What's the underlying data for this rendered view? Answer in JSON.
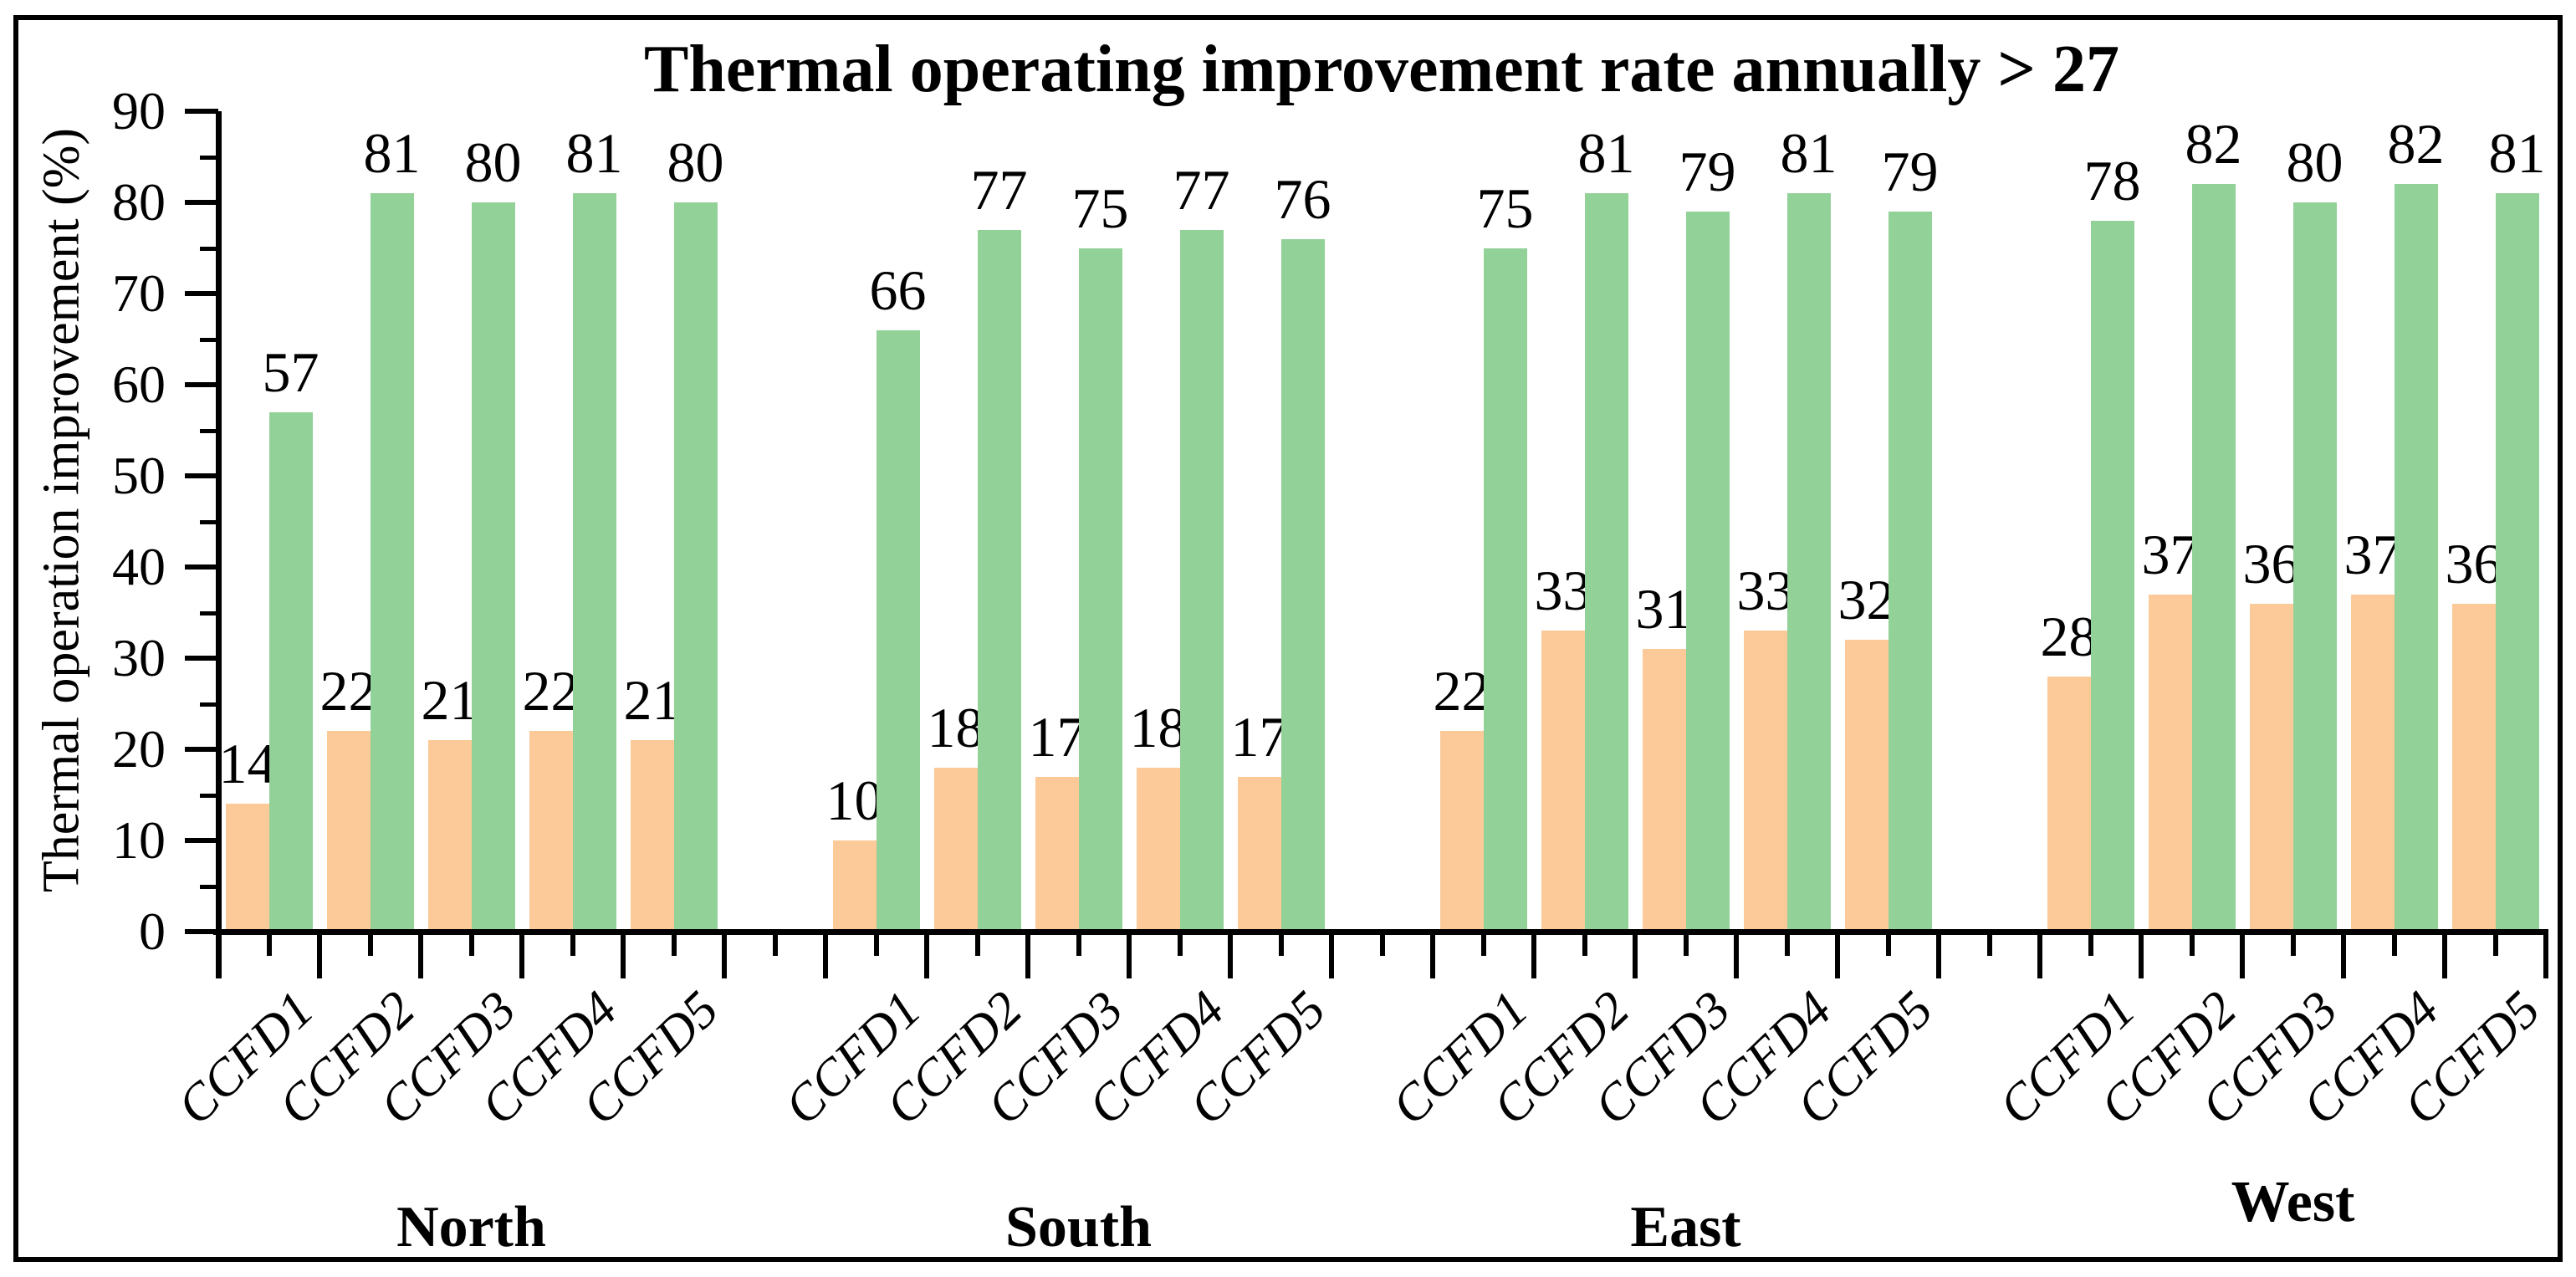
{
  "title": "Thermal operating improvement rate annually > 27",
  "y_axis": {
    "label": "Thermal operation improvement (%)",
    "tick_labels": [
      "0",
      "10",
      "20",
      "30",
      "40",
      "50",
      "60",
      "70",
      "80",
      "90"
    ],
    "range": [
      0,
      90
    ],
    "minor_tick_step": 5
  },
  "x_axis": {
    "group_labels": [
      "North",
      "South",
      "East",
      "West"
    ],
    "category_labels": [
      "CCFD1",
      "CCFD2",
      "CCFD3",
      "CCFD4",
      "CCFD5"
    ]
  },
  "colors": {
    "orange_bar": "#FBCA98",
    "green_bar": "#92D197",
    "axis": "#000000",
    "background": "#FFFFFF"
  },
  "chart_data": {
    "type": "bar",
    "title": "Thermal operating improvement rate annually > 27",
    "xlabel": "",
    "ylabel": "Thermal operation improvement (%)",
    "ylim": [
      0,
      90
    ],
    "yticks": [
      0,
      10,
      20,
      30,
      40,
      50,
      60,
      70,
      80,
      90
    ],
    "grid": false,
    "legend": "none",
    "groups": [
      "North",
      "South",
      "East",
      "West"
    ],
    "categories": [
      "CCFD1",
      "CCFD2",
      "CCFD3",
      "CCFD4",
      "CCFD5"
    ],
    "series": [
      {
        "name": "orange",
        "color": "#FBCA98",
        "values": {
          "North": [
            14,
            22,
            21,
            22,
            21
          ],
          "South": [
            10,
            18,
            17,
            18,
            17
          ],
          "East": [
            22,
            33,
            31,
            33,
            32
          ],
          "West": [
            28,
            37,
            36,
            37,
            36
          ]
        }
      },
      {
        "name": "green",
        "color": "#92D197",
        "values": {
          "North": [
            57,
            81,
            80,
            81,
            80
          ],
          "South": [
            66,
            77,
            75,
            77,
            76
          ],
          "East": [
            75,
            81,
            79,
            81,
            79
          ],
          "West": [
            78,
            82,
            80,
            82,
            81
          ]
        }
      }
    ]
  }
}
